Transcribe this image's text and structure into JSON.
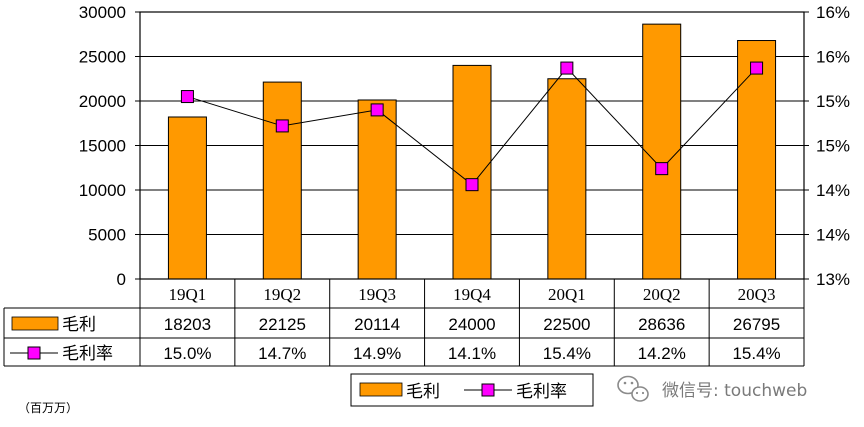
{
  "chart_data": {
    "type": "bar",
    "categories": [
      "19Q1",
      "19Q2",
      "19Q3",
      "19Q4",
      "20Q1",
      "20Q2",
      "20Q3"
    ],
    "series": [
      {
        "name": "毛利",
        "type": "bar",
        "axis": "left",
        "values": [
          18203,
          22125,
          20114,
          24000,
          22500,
          28636,
          26795
        ],
        "color": "#FF9900"
      },
      {
        "name": "毛利率",
        "type": "line",
        "axis": "right",
        "values": [
          15.0,
          14.7,
          14.9,
          14.1,
          15.4,
          14.2,
          15.4
        ],
        "labels": [
          "15.0%",
          "14.7%",
          "14.9%",
          "14.1%",
          "15.4%",
          "14.2%",
          "15.4%"
        ],
        "plotted": [
          15.05,
          14.72,
          14.9,
          14.06,
          15.37,
          14.24,
          15.37
        ],
        "color": "#000000",
        "marker_color": "#FF00FF"
      }
    ],
    "left_axis": {
      "ylim": [
        0,
        30000
      ],
      "ticks": [
        0,
        5000,
        10000,
        15000,
        20000,
        25000,
        30000
      ]
    },
    "right_axis": {
      "ylim": [
        13,
        16
      ],
      "tick_values": [
        13,
        13.5,
        14,
        14.5,
        15,
        15.5,
        16
      ],
      "tick_labels": [
        "13%",
        "14%",
        "14%",
        "15%",
        "15%",
        "16%",
        "16%"
      ]
    },
    "grid": true,
    "data_table": true,
    "legend_position": "bottom-center",
    "unit_note": "（百万万）"
  },
  "watermark": "微信号: touchweb"
}
